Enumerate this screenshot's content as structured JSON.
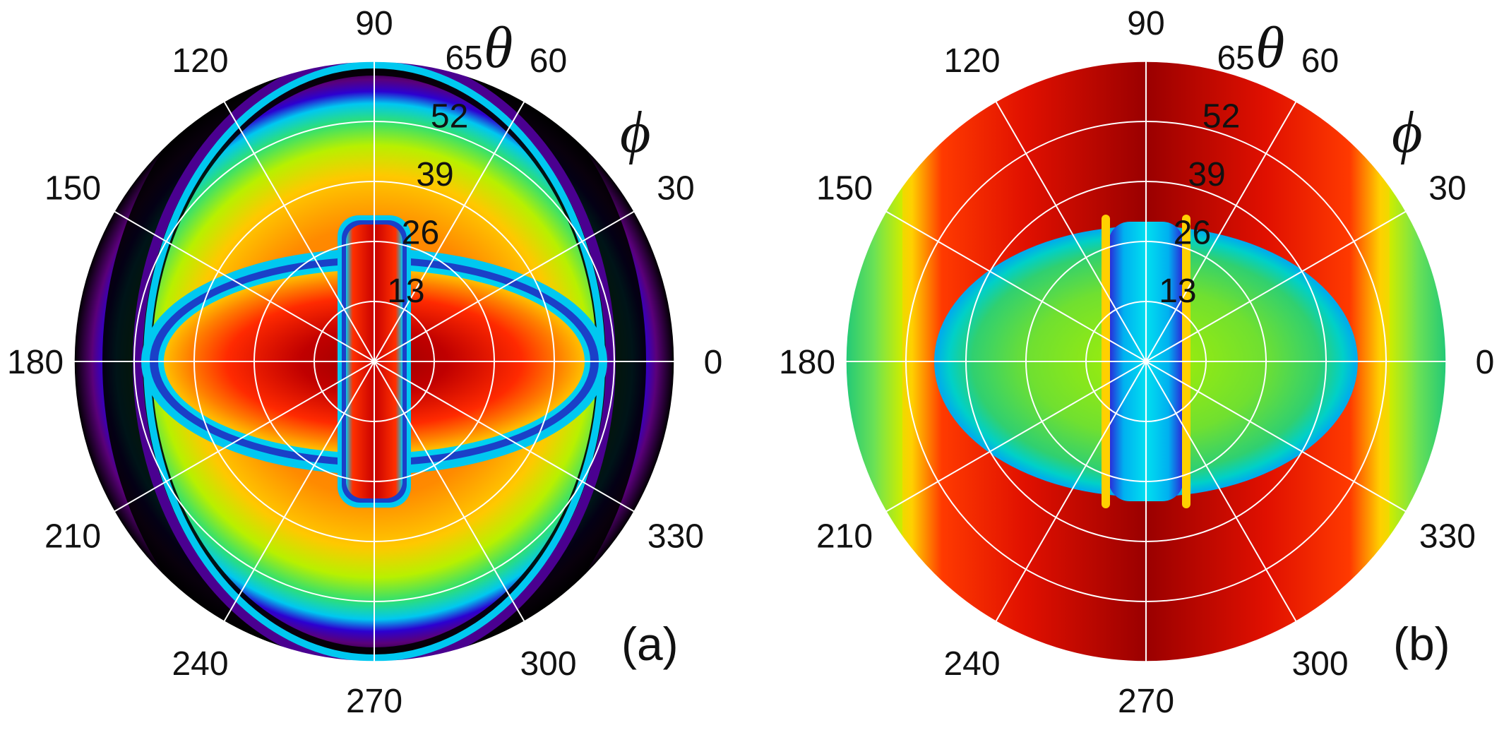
{
  "chart_data": [
    {
      "type": "heatmap",
      "projection": "polar",
      "panel_label": "(a)",
      "radial_symbol": "θ",
      "angular_symbol": "ϕ",
      "angular_ticks": [
        "0",
        "30",
        "60",
        "90",
        "120",
        "150",
        "180",
        "210",
        "240",
        "270",
        "300",
        "330"
      ],
      "radial_ticks": [
        "13",
        "26",
        "39",
        "52",
        "65"
      ],
      "radial_range": [
        0,
        65
      ],
      "angular_range": [
        0,
        360
      ],
      "grid": true,
      "colormap": [
        "#000000",
        "#5a007a",
        "#2c00d0",
        "#00c8f0",
        "#00e070",
        "#c8f000",
        "#ffe000",
        "#ff8000",
        "#ff1a00",
        "#9a0000"
      ],
      "features": [
        {
          "region": "lobes centred on phi 0 and 180, theta 0-40",
          "level": "high (dark red)"
        },
        {
          "region": "vertical band around phi 90/270, theta < 26",
          "level": "high (red)"
        },
        {
          "region": "ring near theta 26-35",
          "level": "low (cyan/blue)"
        },
        {
          "region": "upper and lower caps theta 35-60",
          "level": "medium (orange)"
        },
        {
          "region": "outer edge near phi 0/180, theta > 55",
          "level": "very low (black/purple)"
        }
      ]
    },
    {
      "type": "heatmap",
      "projection": "polar",
      "panel_label": "(b)",
      "radial_symbol": "θ",
      "angular_symbol": "ϕ",
      "angular_ticks": [
        "0",
        "30",
        "60",
        "90",
        "120",
        "150",
        "180",
        "210",
        "240",
        "270",
        "300",
        "330"
      ],
      "radial_ticks": [
        "13",
        "26",
        "39",
        "52",
        "65"
      ],
      "radial_range": [
        0,
        65
      ],
      "angular_range": [
        0,
        360
      ],
      "grid": true,
      "colormap": [
        "#000000",
        "#5a007a",
        "#2c00d0",
        "#00c8f0",
        "#00e070",
        "#c8f000",
        "#ffe000",
        "#ff8000",
        "#ff1a00",
        "#9a0000"
      ],
      "features": [
        {
          "region": "central ellipse, theta < 40 along phi 0/180",
          "level": "medium (green)"
        },
        {
          "region": "vertical band around phi 90/270, theta < 26",
          "level": "low (blue/cyan)"
        },
        {
          "region": "upper and lower outer region",
          "level": "high (red)"
        },
        {
          "region": "outer edge near phi 0/180",
          "level": "medium (green/yellow)"
        }
      ]
    }
  ]
}
